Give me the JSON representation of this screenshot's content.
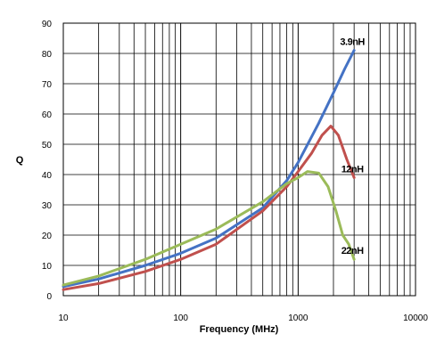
{
  "chart_data": {
    "type": "line",
    "title": "",
    "xlabel": "Frequency (MHz)",
    "ylabel": "Q",
    "xscale": "log",
    "xlim": [
      10,
      10000
    ],
    "ylim": [
      0,
      90
    ],
    "grid": true,
    "legend": "none; series labeled directly at line ends",
    "x_tick_labels": [
      "10",
      "100",
      "1000",
      "10000"
    ],
    "y_tick_labels": [
      "0",
      "10",
      "20",
      "30",
      "40",
      "50",
      "60",
      "70",
      "80",
      "90"
    ],
    "series": [
      {
        "name": "3.9nH",
        "color": "#4472c4",
        "points": [
          [
            10,
            3
          ],
          [
            20,
            5.5
          ],
          [
            50,
            10
          ],
          [
            100,
            14
          ],
          [
            200,
            19
          ],
          [
            500,
            29
          ],
          [
            800,
            38
          ],
          [
            1000,
            44
          ],
          [
            1500,
            57
          ],
          [
            2000,
            67
          ],
          [
            2500,
            75
          ],
          [
            3000,
            81
          ]
        ]
      },
      {
        "name": "12nH",
        "color": "#c0504d",
        "points": [
          [
            10,
            2
          ],
          [
            20,
            4
          ],
          [
            50,
            8
          ],
          [
            100,
            12
          ],
          [
            200,
            17
          ],
          [
            500,
            28
          ],
          [
            800,
            36
          ],
          [
            1000,
            41
          ],
          [
            1300,
            47
          ],
          [
            1600,
            53
          ],
          [
            1900,
            56
          ],
          [
            2200,
            53
          ],
          [
            2600,
            45
          ],
          [
            3000,
            39
          ]
        ]
      },
      {
        "name": "22nH",
        "color": "#9bbb59",
        "points": [
          [
            10,
            3.5
          ],
          [
            20,
            6.5
          ],
          [
            50,
            12
          ],
          [
            100,
            17
          ],
          [
            200,
            22
          ],
          [
            500,
            31
          ],
          [
            800,
            37
          ],
          [
            1000,
            39
          ],
          [
            1200,
            41
          ],
          [
            1500,
            40.5
          ],
          [
            1800,
            36
          ],
          [
            2100,
            28
          ],
          [
            2400,
            20
          ],
          [
            2700,
            17
          ],
          [
            3000,
            12
          ]
        ]
      }
    ]
  }
}
